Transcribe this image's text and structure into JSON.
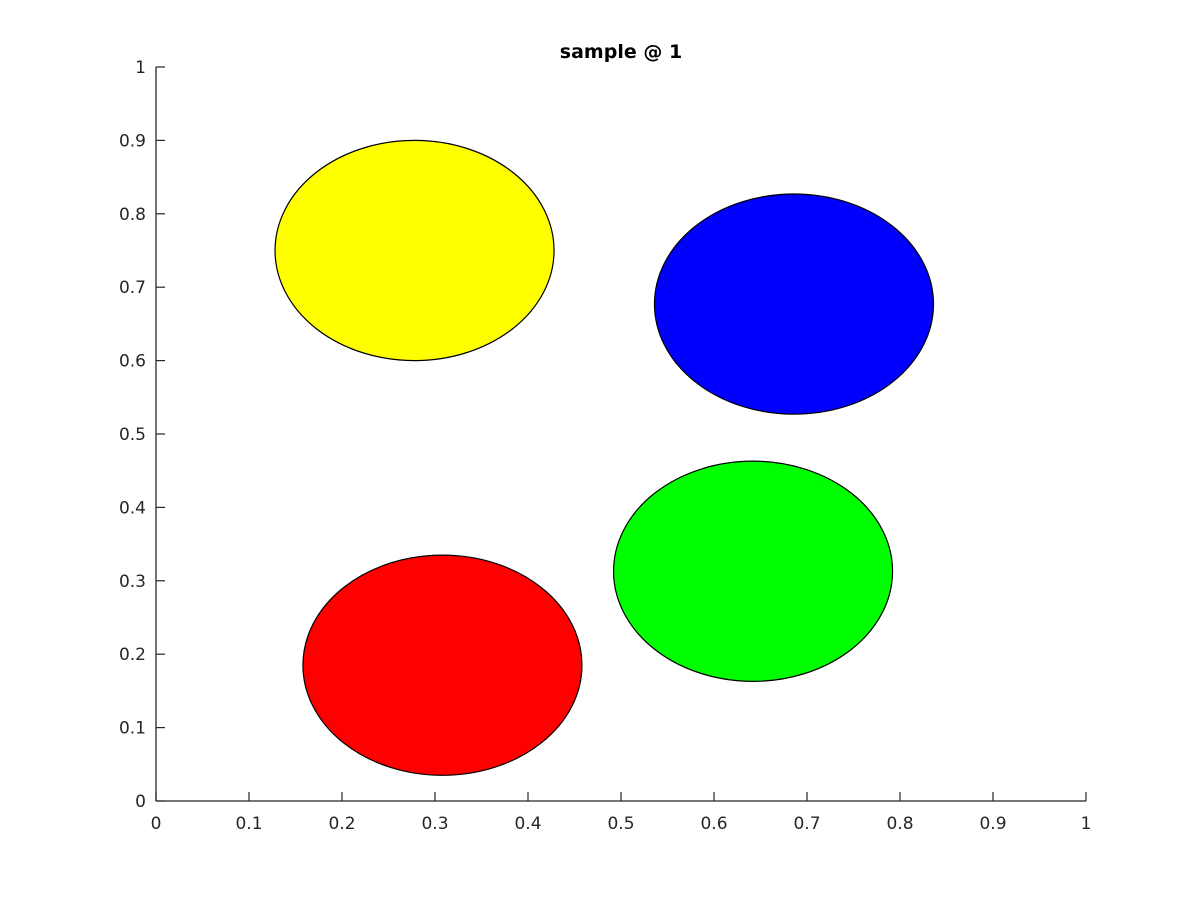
{
  "chart_data": {
    "type": "scatter",
    "title": "sample @ 1",
    "xlabel": "",
    "ylabel": "",
    "xlim": [
      0,
      1
    ],
    "ylim": [
      0,
      1
    ],
    "xticks": [
      "0",
      "0.1",
      "0.2",
      "0.3",
      "0.4",
      "0.5",
      "0.6",
      "0.7",
      "0.8",
      "0.9",
      "1"
    ],
    "yticks": [
      "0",
      "0.1",
      "0.2",
      "0.3",
      "0.4",
      "0.5",
      "0.6",
      "0.7",
      "0.8",
      "0.9",
      "1"
    ],
    "grid": false,
    "shapes": [
      {
        "kind": "ellipse",
        "color": "#ffff00",
        "cx": 0.278,
        "cy": 0.75,
        "rx": 0.15,
        "ry": 0.15,
        "edge_color": "#000000"
      },
      {
        "kind": "ellipse",
        "color": "#0000ff",
        "cx": 0.686,
        "cy": 0.677,
        "rx": 0.15,
        "ry": 0.15,
        "edge_color": "#000000"
      },
      {
        "kind": "ellipse",
        "color": "#00ff00",
        "cx": 0.642,
        "cy": 0.313,
        "rx": 0.15,
        "ry": 0.15,
        "edge_color": "#000000"
      },
      {
        "kind": "ellipse",
        "color": "#ff0000",
        "cx": 0.308,
        "cy": 0.185,
        "rx": 0.15,
        "ry": 0.15,
        "edge_color": "#000000"
      }
    ]
  }
}
